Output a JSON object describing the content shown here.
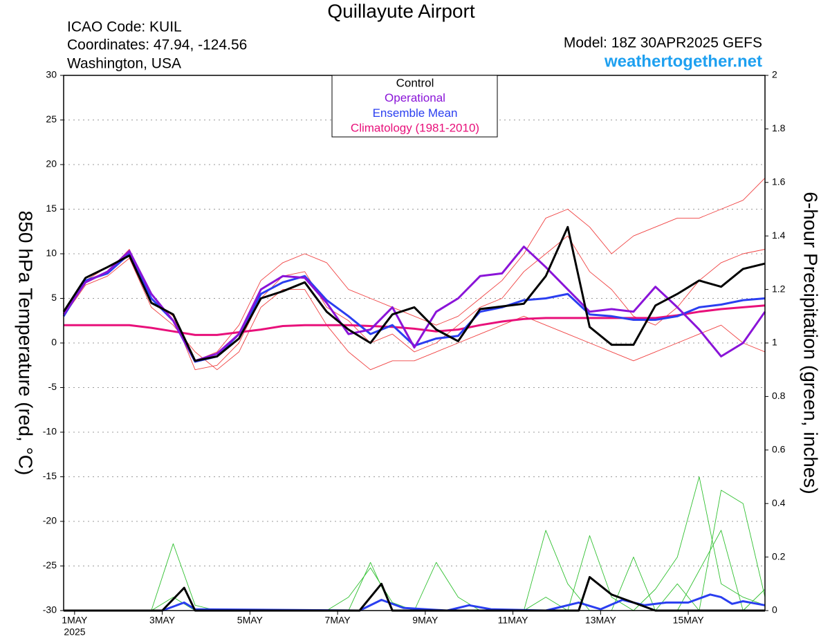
{
  "chart_data": {
    "type": "line",
    "title": "Quillayute Airport",
    "info": [
      "ICAO Code: KUIL",
      "Coordinates: 47.94, -124.56",
      "Washington, USA"
    ],
    "model": "Model: 18Z 30APR2025 GEFS",
    "site": "weathertogether.net",
    "ylabel": "850 hPa Temperature (red, °C)",
    "y2label": "6-hour Precipitation (green, inches)",
    "x_year": "2025",
    "xlim": [
      -0.25,
      15.75
    ],
    "xticks": [
      {
        "value": 0,
        "label": "1MAY"
      },
      {
        "value": 2,
        "label": "3MAY"
      },
      {
        "value": 4,
        "label": "5MAY"
      },
      {
        "value": 6,
        "label": "7MAY"
      },
      {
        "value": 8,
        "label": "9MAY"
      },
      {
        "value": 10,
        "label": "11MAY"
      },
      {
        "value": 12,
        "label": "13MAY"
      },
      {
        "value": 14,
        "label": "15MAY"
      }
    ],
    "ylim": [
      -30,
      30
    ],
    "yticks": [
      -30,
      -25,
      -20,
      -15,
      -10,
      -5,
      0,
      5,
      10,
      15,
      20,
      25,
      30
    ],
    "y2lim": [
      0,
      2
    ],
    "y2ticks": [
      0,
      0.2,
      0.4,
      0.6,
      0.8,
      1,
      1.2,
      1.4,
      1.6,
      1.8,
      2
    ],
    "grid": true,
    "x": [
      -0.25,
      0.25,
      0.75,
      1.25,
      1.75,
      2.25,
      2.75,
      3.25,
      3.75,
      4.25,
      4.75,
      5.25,
      5.75,
      6.25,
      6.75,
      7.25,
      7.75,
      8.25,
      8.75,
      9.25,
      9.75,
      10.25,
      10.75,
      11.25,
      11.75,
      12.25,
      12.75,
      13.25,
      13.75,
      14.25,
      14.75,
      15.25,
      15.75
    ],
    "series": [
      {
        "name": "Control",
        "color": "#000000",
        "values": [
          3.5,
          7.3,
          8.5,
          9.8,
          4.5,
          3.2,
          -2.0,
          -1.5,
          0.5,
          5.0,
          5.8,
          6.8,
          3.5,
          1.5,
          0,
          3.2,
          4.0,
          1.5,
          0.2,
          3.8,
          4.1,
          4.4,
          7.5,
          13.0,
          1.8,
          -0.2,
          -0.2,
          4.2,
          5.5,
          7.0,
          6.3,
          8.3,
          8.9
        ]
      },
      {
        "name": "Operational",
        "color": "#8a14d8",
        "values": [
          3.2,
          6.8,
          8.0,
          10.3,
          5.5,
          2.5,
          -2.0,
          -1.2,
          1.0,
          6.0,
          7.5,
          7.3,
          4.5,
          1.0,
          1.5,
          4.0,
          -0.5,
          3.5,
          5.0,
          7.5,
          7.8,
          10.8,
          8.5,
          6.0,
          3.5,
          3.8,
          3.5,
          6.3,
          4.0,
          1.5,
          -1.5,
          0,
          3.5
        ]
      },
      {
        "name": "Ensemble Mean",
        "color": "#2a3ef0",
        "values": [
          3.0,
          7.0,
          7.8,
          10.0,
          5.0,
          2.5,
          -2.1,
          -1.5,
          1.0,
          5.5,
          6.8,
          7.5,
          4.8,
          3.0,
          1.0,
          2.0,
          -0.3,
          0.5,
          0.8,
          3.5,
          4.0,
          4.8,
          5.0,
          5.5,
          3.2,
          3.0,
          2.6,
          2.6,
          3.0,
          4.0,
          4.3,
          4.8,
          5.0
        ]
      },
      {
        "name": "Climatology (1981-2010)",
        "color": "#e8107a",
        "values": [
          2.0,
          2.0,
          2.0,
          2.0,
          1.7,
          1.3,
          0.9,
          0.9,
          1.2,
          1.5,
          1.9,
          2.0,
          2.0,
          2.0,
          1.9,
          1.8,
          1.6,
          1.3,
          1.5,
          2.0,
          2.4,
          2.7,
          2.8,
          2.8,
          2.8,
          2.8,
          2.8,
          2.8,
          3.1,
          3.5,
          3.8,
          4.0,
          4.2
        ]
      },
      {
        "color": "#f04040",
        "values": [
          3.5,
          7,
          8,
          10.5,
          5,
          3,
          -3,
          -2.5,
          0,
          5,
          7.5,
          8,
          4,
          2.5,
          0,
          1,
          -1,
          0,
          2,
          4,
          5,
          8,
          10,
          12,
          8,
          6,
          3,
          2,
          4,
          7,
          9,
          10,
          10.5
        ]
      },
      {
        "color": "#f04040",
        "values": [
          3,
          6.5,
          7.5,
          9.5,
          4,
          2,
          -1,
          -3,
          -1,
          4,
          6,
          6,
          2,
          -1,
          -3,
          -2,
          -2,
          -1,
          0,
          1,
          2,
          3,
          2,
          1,
          0,
          -1,
          -2,
          -1,
          0,
          1,
          2,
          0,
          -1
        ]
      },
      {
        "color": "#f04040",
        "values": [
          3.2,
          7,
          8.5,
          10,
          5,
          3,
          -2,
          -1,
          2,
          7,
          9,
          10,
          9,
          6,
          5,
          4,
          3,
          2,
          3,
          5,
          7,
          10,
          14,
          15,
          13,
          10,
          12,
          13,
          14,
          14,
          15,
          16,
          18.5
        ]
      },
      {
        "color": "#30c030",
        "axis": "y2",
        "values": [
          0,
          0,
          0,
          0,
          0,
          0.25,
          0.02,
          0,
          0,
          0,
          0,
          0,
          0,
          0.05,
          0.16,
          0.03,
          0,
          0,
          0,
          0,
          0,
          0,
          0.3,
          0.1,
          0,
          0,
          0,
          0.08,
          0.2,
          0.5,
          0.1,
          0.05,
          0.02
        ]
      },
      {
        "color": "#30c030",
        "axis": "y2",
        "values": [
          0,
          0,
          0,
          0,
          0,
          0.05,
          0,
          0,
          0,
          0,
          0,
          0,
          0,
          0,
          0.18,
          0,
          0,
          0.18,
          0.05,
          0,
          0,
          0,
          0,
          0,
          0.28,
          0.05,
          0,
          0,
          0.1,
          0,
          0.45,
          0.4,
          0.05
        ]
      },
      {
        "color": "#30c030",
        "axis": "y2",
        "values": [
          0,
          0,
          0,
          0,
          0,
          0,
          0,
          0,
          0,
          0,
          0,
          0,
          0,
          0,
          0,
          0,
          0,
          0,
          0,
          0,
          0,
          0,
          0.05,
          0,
          0,
          0,
          0.2,
          0,
          0,
          0.15,
          0.3,
          0,
          0.08
        ]
      },
      {
        "color": "#2a3ef0",
        "axis": "y2",
        "x": [
          -0.25,
          2.0,
          2.5,
          2.75,
          6.5,
          7.0,
          7.5,
          8.5,
          9.0,
          9.5,
          10.75,
          11.5,
          12.0,
          12.5,
          13.0,
          13.5,
          14.0,
          14.5,
          14.75,
          15.0,
          15.25,
          15.75
        ],
        "values": [
          0,
          0,
          0.03,
          0.005,
          0,
          0.04,
          0.01,
          0,
          0.02,
          0.005,
          0,
          0.03,
          0.005,
          0.04,
          0.02,
          0.03,
          0.03,
          0.06,
          0.05,
          0.025,
          0.035,
          0.02
        ]
      },
      {
        "color": "#000000",
        "axis": "y2",
        "x": [
          -0.25,
          2.0,
          2.5,
          2.75,
          6.5,
          7.0,
          7.25,
          11.5,
          11.75,
          12.25,
          12.75,
          13.25,
          15.75
        ],
        "values": [
          0,
          0,
          0.085,
          0,
          0,
          0.1,
          0,
          0,
          0.125,
          0.06,
          0.03,
          0,
          0
        ]
      }
    ]
  }
}
